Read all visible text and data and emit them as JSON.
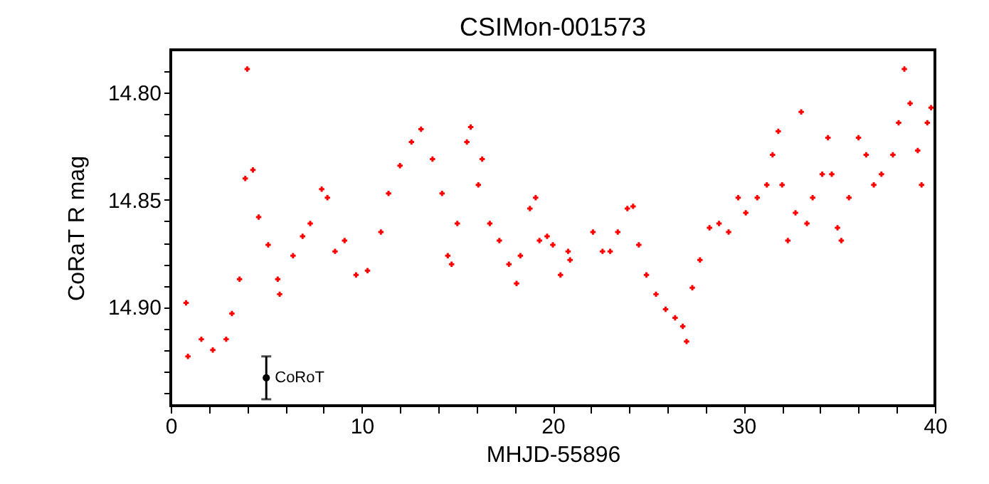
{
  "chart_data": {
    "type": "scatter",
    "title": "CSIMon-001573",
    "xlabel": "MHJD-55896",
    "ylabel": "CoRaT R mag",
    "xlim": [
      0,
      40
    ],
    "ylim": [
      14.946,
      14.78
    ],
    "xticks": [
      0,
      {
        "value": 2,
        "label": null
      },
      {
        "value": 4,
        "label": null
      },
      {
        "value": 6,
        "label": null
      },
      {
        "value": 8,
        "label": null
      },
      10,
      {
        "value": 12,
        "label": null
      },
      {
        "value": 14,
        "label": null
      },
      {
        "value": 16,
        "label": null
      },
      {
        "value": 18,
        "label": null
      },
      20,
      {
        "value": 22,
        "label": null
      },
      {
        "value": 24,
        "label": null
      },
      {
        "value": 26,
        "label": null
      },
      {
        "value": 28,
        "label": null
      },
      30,
      {
        "value": 32,
        "label": null
      },
      {
        "value": 34,
        "label": null
      },
      {
        "value": 36,
        "label": null
      },
      {
        "value": 38,
        "label": null
      },
      40
    ],
    "yticks": [
      {
        "value": 14.79,
        "label": null
      },
      {
        "value": 14.8,
        "label": "14.80"
      },
      {
        "value": 14.81,
        "label": null
      },
      {
        "value": 14.82,
        "label": null
      },
      {
        "value": 14.83,
        "label": null
      },
      {
        "value": 14.84,
        "label": null
      },
      {
        "value": 14.85,
        "label": "14.85"
      },
      {
        "value": 14.86,
        "label": null
      },
      {
        "value": 14.87,
        "label": null
      },
      {
        "value": 14.88,
        "label": null
      },
      {
        "value": 14.89,
        "label": null
      },
      {
        "value": 14.9,
        "label": "14.90"
      },
      {
        "value": 14.91,
        "label": null
      },
      {
        "value": 14.92,
        "label": null
      },
      {
        "value": 14.93,
        "label": null
      },
      {
        "value": 14.94,
        "label": null
      }
    ],
    "grid": false,
    "legend": false,
    "marker": "cross",
    "series": [
      {
        "color": "#ff0000",
        "x": [
          0.8,
          0.9,
          1.6,
          2.2,
          2.9,
          3.2,
          3.6,
          3.9,
          4.0,
          4.3,
          4.6,
          5.1,
          5.6,
          5.7,
          6.4,
          6.9,
          7.3,
          7.9,
          8.2,
          8.6,
          9.1,
          9.7,
          10.3,
          11.0,
          11.4,
          12.0,
          12.6,
          13.1,
          13.7,
          14.2,
          14.5,
          14.7,
          15.0,
          15.5,
          15.7,
          16.1,
          16.3,
          16.7,
          17.2,
          17.7,
          18.1,
          18.3,
          18.8,
          19.1,
          19.3,
          19.7,
          20.0,
          20.4,
          20.8,
          20.9,
          22.1,
          22.6,
          23.0,
          23.4,
          23.9,
          24.2,
          24.5,
          24.9,
          25.4,
          25.9,
          26.4,
          26.8,
          27.0,
          27.3,
          27.7,
          28.2,
          28.7,
          29.2,
          29.7,
          30.1,
          30.7,
          31.2,
          31.5,
          31.8,
          32.0,
          32.3,
          32.7,
          33.0,
          33.3,
          33.6,
          34.1,
          34.4,
          34.6,
          34.9,
          35.1,
          35.5,
          36.0,
          36.4,
          36.8,
          37.2,
          37.8,
          38.1,
          38.4,
          38.7,
          39.1,
          39.3,
          39.6,
          39.8
        ],
        "values": [
          14.898,
          14.923,
          14.915,
          14.92,
          14.915,
          14.903,
          14.887,
          14.84,
          14.789,
          14.836,
          14.858,
          14.871,
          14.887,
          14.894,
          14.876,
          14.867,
          14.861,
          14.845,
          14.849,
          14.874,
          14.869,
          14.885,
          14.883,
          14.865,
          14.847,
          14.834,
          14.823,
          14.817,
          14.831,
          14.847,
          14.876,
          14.88,
          14.861,
          14.823,
          14.816,
          14.843,
          14.831,
          14.861,
          14.869,
          14.88,
          14.889,
          14.876,
          14.854,
          14.849,
          14.869,
          14.867,
          14.871,
          14.885,
          14.874,
          14.878,
          14.865,
          14.874,
          14.874,
          14.865,
          14.854,
          14.853,
          14.871,
          14.885,
          14.894,
          14.901,
          14.905,
          14.909,
          14.916,
          14.891,
          14.878,
          14.863,
          14.861,
          14.865,
          14.849,
          14.856,
          14.849,
          14.843,
          14.829,
          14.818,
          14.843,
          14.869,
          14.856,
          14.809,
          14.861,
          14.849,
          14.838,
          14.821,
          14.838,
          14.863,
          14.869,
          14.849,
          14.821,
          14.829,
          14.843,
          14.838,
          14.829,
          14.814,
          14.789,
          14.805,
          14.827,
          14.843,
          14.814,
          14.807
        ]
      },
      {
        "name": "CoRoT",
        "color": "#000000",
        "marker": "circle",
        "x": [
          5.0
        ],
        "values": [
          14.933
        ],
        "errors": [
          0.01
        ]
      }
    ]
  }
}
